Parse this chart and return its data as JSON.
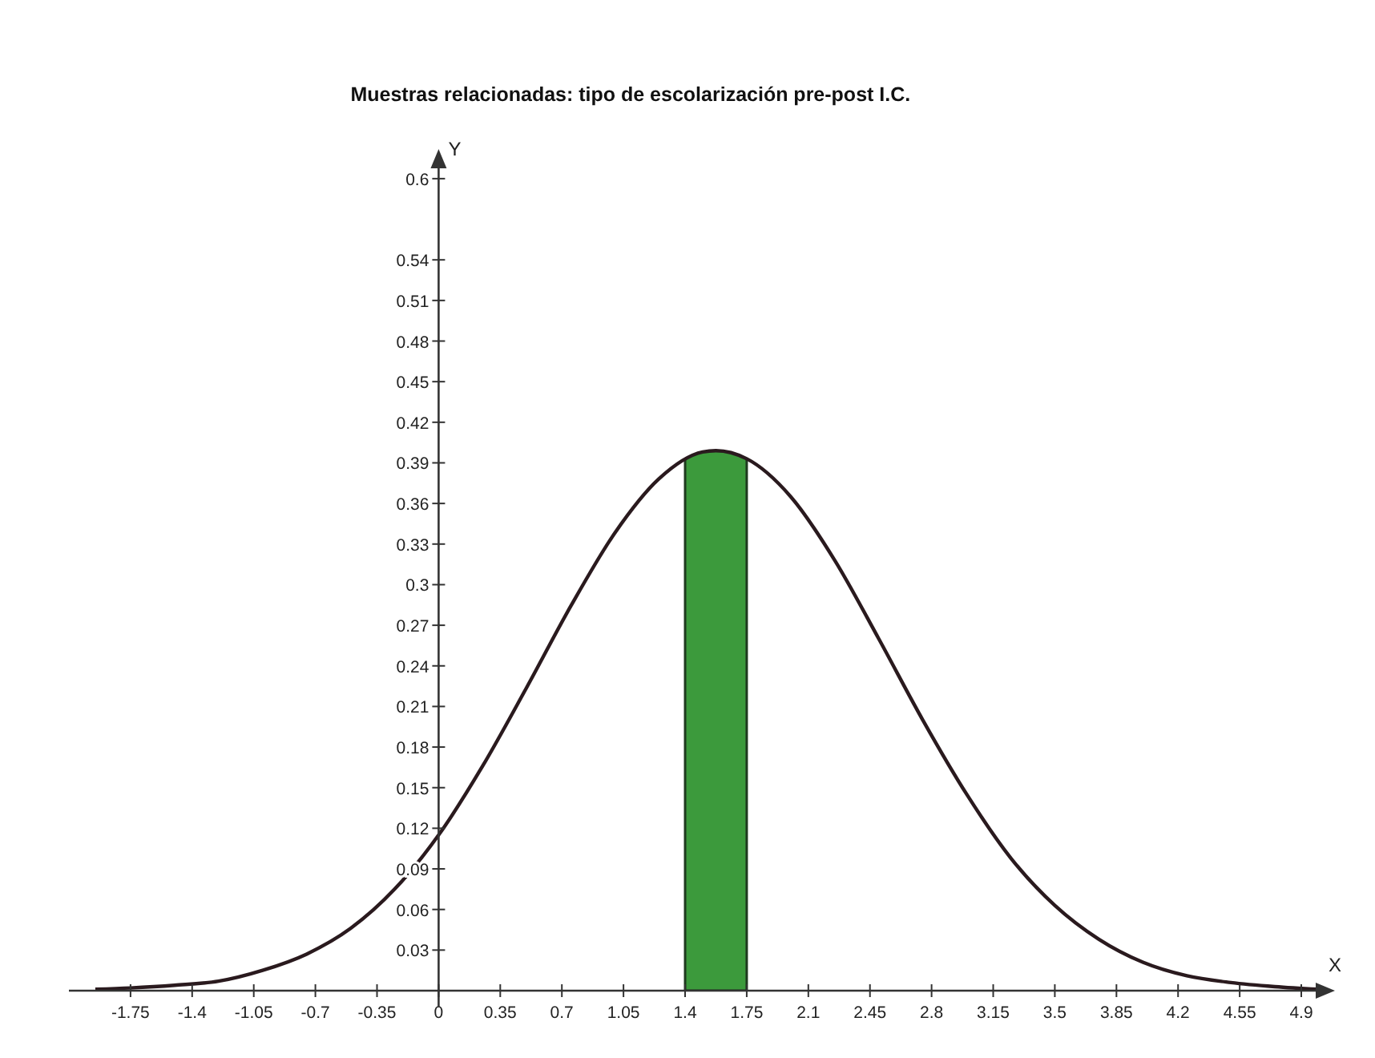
{
  "chart_data": {
    "type": "line",
    "title": "Muestras relacionadas: tipo de escolarización pre-post I.C.",
    "xlabel": "X",
    "ylabel": "Y",
    "xlim": [
      -2.1,
      5.0
    ],
    "ylim": [
      0,
      0.61
    ],
    "xticks": [
      -1.75,
      -1.4,
      -1.05,
      -0.7,
      -0.35,
      0,
      0.35,
      0.7,
      1.05,
      1.4,
      1.75,
      2.1,
      2.45,
      2.8,
      3.15,
      3.5,
      3.85,
      4.2,
      4.55,
      4.9
    ],
    "yticks": [
      0.03,
      0.06,
      0.09,
      0.12,
      0.15,
      0.18,
      0.21,
      0.24,
      0.27,
      0.3,
      0.33,
      0.36,
      0.39,
      0.42,
      0.45,
      0.48,
      0.51,
      0.54,
      0.6
    ],
    "grid": false,
    "marker": "none",
    "line_style": "solid",
    "series": [
      {
        "color": "#2a1a1e",
        "x": [
          -1.95,
          -1.75,
          -1.5,
          -1.25,
          -1.0,
          -0.75,
          -0.5,
          -0.25,
          0,
          0.25,
          0.5,
          0.75,
          1.0,
          1.25,
          1.5,
          1.575,
          1.75,
          2.0,
          2.25,
          2.5,
          2.75,
          3.0,
          3.25,
          3.5,
          3.75,
          4.0,
          4.25,
          4.5,
          4.75,
          5.0
        ],
        "values": [
          0.001,
          0.002,
          0.004,
          0.007,
          0.015,
          0.027,
          0.046,
          0.075,
          0.115,
          0.166,
          0.224,
          0.284,
          0.338,
          0.378,
          0.398,
          0.399,
          0.393,
          0.365,
          0.318,
          0.26,
          0.2,
          0.145,
          0.098,
          0.063,
          0.038,
          0.021,
          0.011,
          0.006,
          0.003,
          0.001
        ]
      }
    ],
    "bands": [
      {
        "axis": "x",
        "from": 1.4,
        "to": 1.75,
        "color": "#3c9a3c"
      }
    ]
  }
}
